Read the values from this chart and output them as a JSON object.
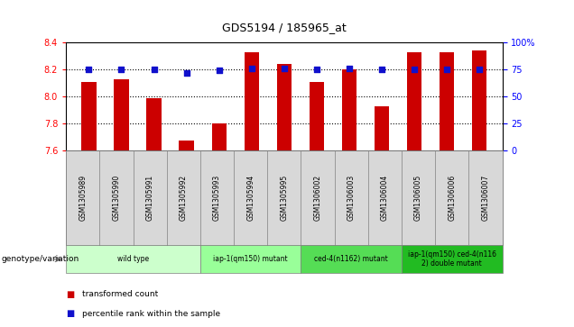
{
  "title": "GDS5194 / 185965_at",
  "samples": [
    "GSM1305989",
    "GSM1305990",
    "GSM1305991",
    "GSM1305992",
    "GSM1305993",
    "GSM1305994",
    "GSM1305995",
    "GSM1306002",
    "GSM1306003",
    "GSM1306004",
    "GSM1306005",
    "GSM1306006",
    "GSM1306007"
  ],
  "transformed_count": [
    8.11,
    8.13,
    7.99,
    7.67,
    7.8,
    8.33,
    8.24,
    8.11,
    8.2,
    7.93,
    8.33,
    8.33,
    8.34
  ],
  "percentile_rank": [
    75,
    75,
    75,
    72,
    74,
    76,
    76,
    75,
    76,
    75,
    75,
    75,
    75
  ],
  "bar_color": "#cc0000",
  "dot_color": "#1010cc",
  "ylim_left": [
    7.6,
    8.4
  ],
  "ylim_right": [
    0,
    100
  ],
  "right_ticks": [
    0,
    25,
    50,
    75,
    100
  ],
  "right_tick_labels": [
    "0",
    "25",
    "50",
    "75",
    "100%"
  ],
  "left_ticks": [
    7.6,
    7.8,
    8.0,
    8.2,
    8.4
  ],
  "groups": [
    {
      "label": "wild type",
      "start": 0,
      "end": 3,
      "color": "#ccffcc"
    },
    {
      "label": "iap-1(qm150) mutant",
      "start": 4,
      "end": 6,
      "color": "#99ff99"
    },
    {
      "label": "ced-4(n1162) mutant",
      "start": 7,
      "end": 9,
      "color": "#55dd55"
    },
    {
      "label": "iap-1(qm150) ced-4(n116\n2) double mutant",
      "start": 10,
      "end": 12,
      "color": "#22bb22"
    }
  ],
  "legend_label_bar": "transformed count",
  "legend_label_dot": "percentile rank within the sample",
  "genotype_label": "genotype/variation",
  "bg_color": "#d8d8d8",
  "plot_bg": "#ffffff",
  "bar_bottom": 7.6,
  "bar_width": 0.45,
  "dot_size": 16
}
